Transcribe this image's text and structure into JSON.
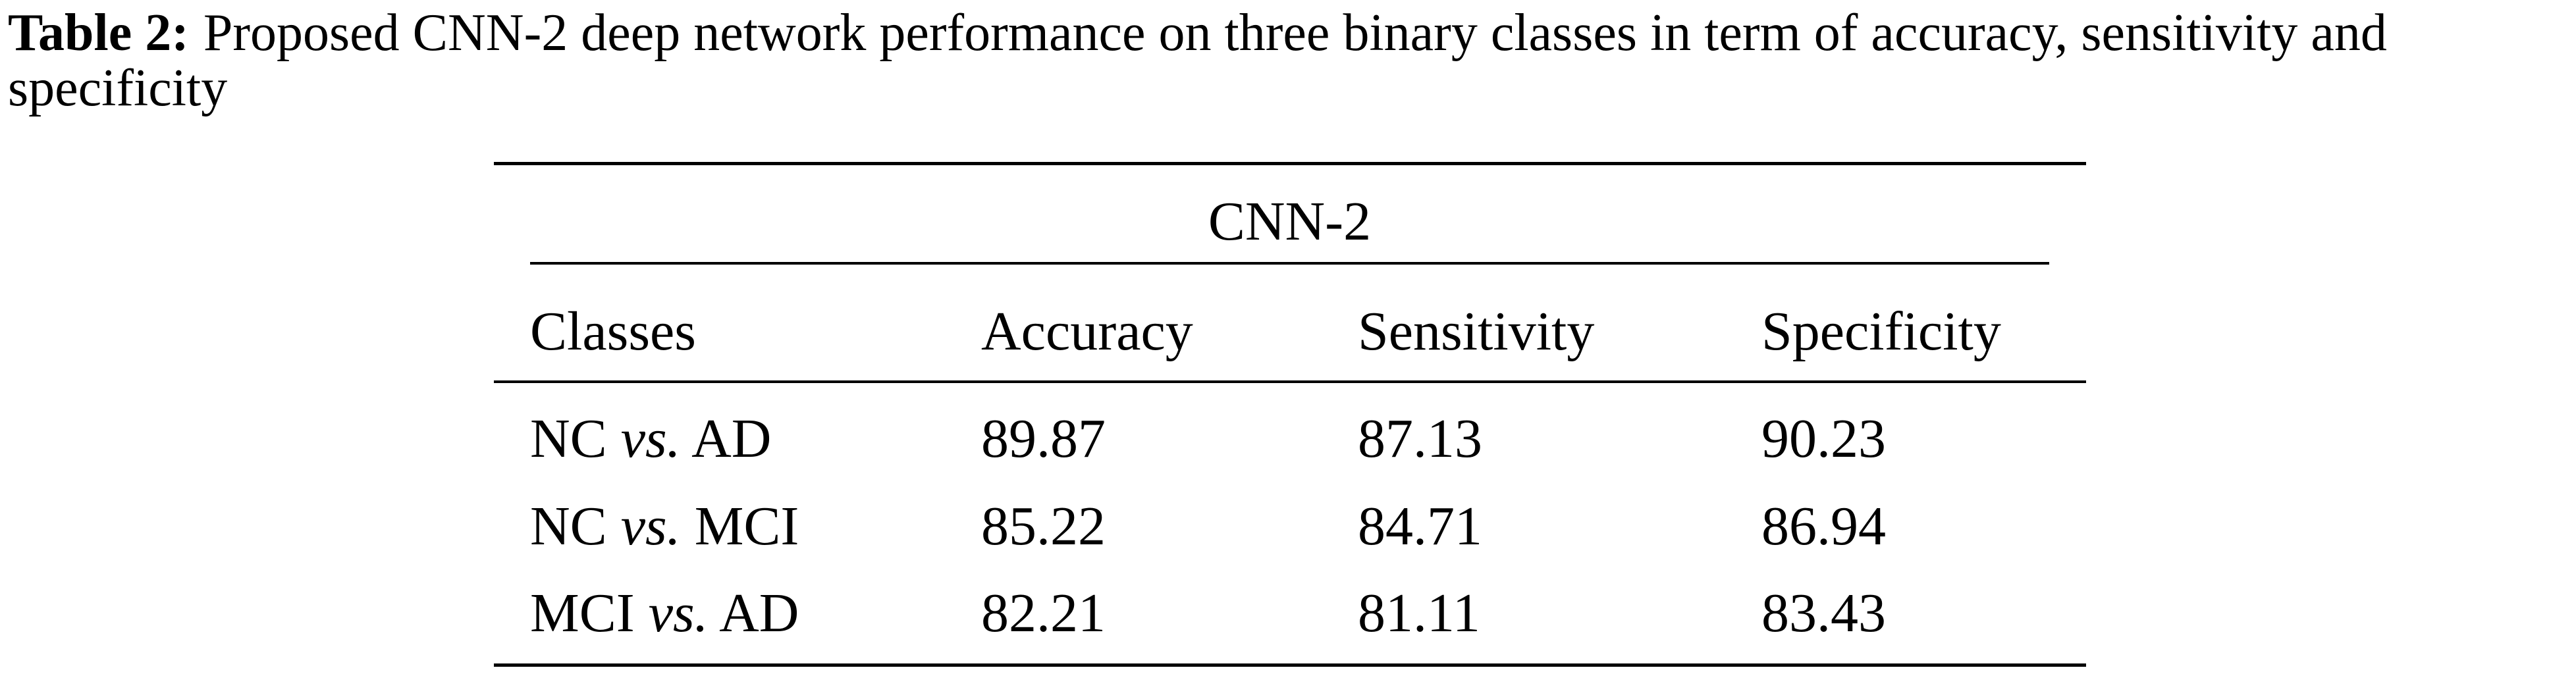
{
  "caption": {
    "label": "Table 2:",
    "text": "Proposed CNN-2 deep network performance on three binary classes in term of accuracy, sensitivity and specificity"
  },
  "table": {
    "group_header": "CNN-2",
    "headers": [
      "Classes",
      "Accuracy",
      "Sensitivity",
      "Specificity"
    ],
    "rows": [
      {
        "label": [
          "NC",
          "vs.",
          "AD"
        ],
        "values": [
          89.87,
          87.13,
          90.23
        ]
      },
      {
        "label": [
          "NC",
          "vs.",
          "MCI"
        ],
        "values": [
          85.22,
          84.71,
          86.94
        ]
      },
      {
        "label": [
          "MCI",
          "vs.",
          "AD"
        ],
        "values": [
          82.21,
          81.11,
          83.43
        ]
      }
    ]
  }
}
